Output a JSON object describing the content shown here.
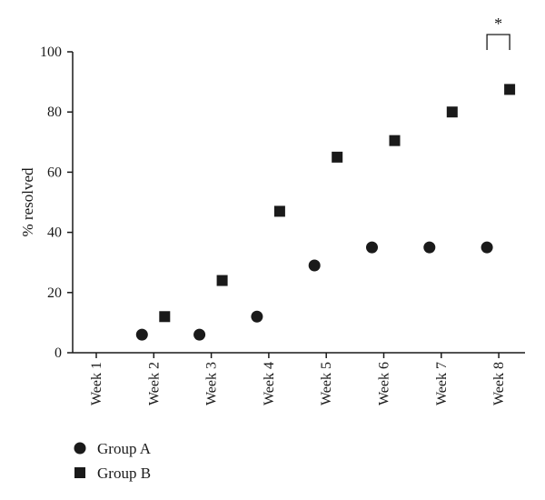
{
  "chart_data": {
    "type": "scatter",
    "title": "",
    "xlabel": "",
    "ylabel": "% resolved",
    "categories": [
      "Week 1",
      "Week 2",
      "Week 3",
      "Week 4",
      "Week 5",
      "Week 6",
      "Week 7",
      "Week 8"
    ],
    "ylim": [
      0,
      100
    ],
    "yticks": [
      "0",
      "20",
      "40",
      "60",
      "80",
      "100"
    ],
    "grid": false,
    "legend_position": "bottom-left",
    "series": [
      {
        "name": "Group A",
        "marker": "circle",
        "color": "#1a1a1a",
        "values": [
          null,
          6,
          6,
          12,
          29,
          35,
          35,
          35
        ]
      },
      {
        "name": "Group B",
        "marker": "square",
        "color": "#1a1a1a",
        "values": [
          null,
          12,
          24,
          47,
          65,
          70.5,
          80,
          87.5
        ]
      }
    ],
    "annotations": [
      {
        "type": "significance-bracket",
        "category": "Week 8",
        "text": "*"
      }
    ]
  }
}
